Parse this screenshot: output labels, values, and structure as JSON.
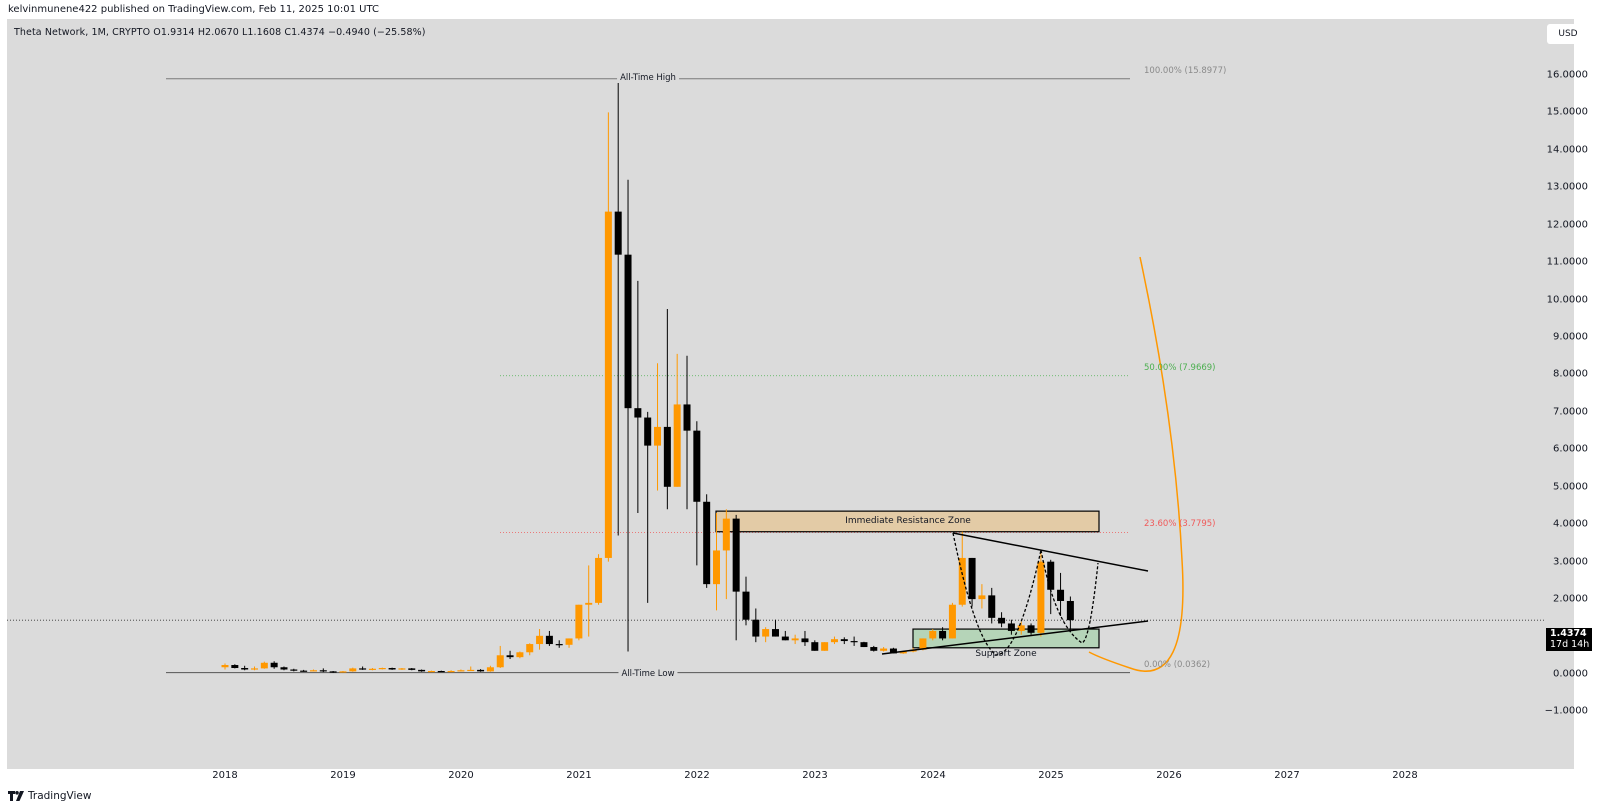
{
  "header": {
    "published": "kelvinmunene422 published on TradingView.com, Feb 11, 2025 10:01 UTC",
    "symbol_line": "Theta Network, 1M, CRYPTO  O1.9314  H2.0670  L1.1608  C1.4374  −0.4940 (−25.58%)",
    "currency_button": "USD"
  },
  "last_price": {
    "value": "1.4374",
    "countdown": "17d 14h"
  },
  "footer": {
    "brand": "TradingView",
    "logo_glyph": "17"
  },
  "annotations": {
    "ath_label": "All-Time High",
    "atl_label": "All-Time Low",
    "resistance_label": "Immediate Resistance Zone",
    "support_label": "Support Zone",
    "fib": [
      {
        "label": "100.00% (15.8977)",
        "price": 15.8977,
        "color": "#8a8a8a"
      },
      {
        "label": "50.00% (7.9669)",
        "price": 7.9669,
        "color": "#4caf50"
      },
      {
        "label": "23.60% (3.7795)",
        "price": 3.7795,
        "color": "#f05a5a"
      },
      {
        "label": "0.00% (0.0362)",
        "price": 0.0362,
        "color": "#8a8a8a"
      }
    ]
  },
  "colors": {
    "up": "#ff9800",
    "down": "#000000",
    "background": "#dbdbdb",
    "resistance_fill": "#e3cba6",
    "support_fill": "#b5d4b8",
    "curve": "#ff9800"
  },
  "chart_data": {
    "type": "candlestick",
    "title": "Theta Network, 1M, CRYPTO",
    "xlabel": "",
    "ylabel": "USD",
    "ylim": [
      -1.5,
      17
    ],
    "y_ticks": [
      "16.0000",
      "15.0000",
      "14.0000",
      "13.0000",
      "12.0000",
      "11.0000",
      "10.0000",
      "9.0000",
      "8.0000",
      "7.0000",
      "6.0000",
      "5.0000",
      "4.0000",
      "3.0000",
      "2.0000",
      "1.0000",
      "0.0000",
      "−1.0000"
    ],
    "x_ticks": [
      "2018",
      "2019",
      "2020",
      "2021",
      "2022",
      "2023",
      "2024",
      "2025",
      "2026",
      "2027",
      "2028"
    ],
    "ohlc_note": "monthly candles starting 2018-01 (approximate, read from chart)",
    "candles": [
      [
        0.18,
        0.28,
        0.12,
        0.24
      ],
      [
        0.24,
        0.26,
        0.15,
        0.16
      ],
      [
        0.16,
        0.22,
        0.1,
        0.12
      ],
      [
        0.12,
        0.2,
        0.1,
        0.15
      ],
      [
        0.15,
        0.33,
        0.14,
        0.3
      ],
      [
        0.3,
        0.34,
        0.14,
        0.18
      ],
      [
        0.18,
        0.2,
        0.1,
        0.12
      ],
      [
        0.12,
        0.14,
        0.07,
        0.09
      ],
      [
        0.09,
        0.11,
        0.06,
        0.08
      ],
      [
        0.08,
        0.12,
        0.07,
        0.1
      ],
      [
        0.1,
        0.15,
        0.05,
        0.07
      ],
      [
        0.07,
        0.08,
        0.03,
        0.05
      ],
      [
        0.05,
        0.08,
        0.04,
        0.07
      ],
      [
        0.07,
        0.17,
        0.06,
        0.15
      ],
      [
        0.15,
        0.2,
        0.11,
        0.13
      ],
      [
        0.13,
        0.16,
        0.1,
        0.14
      ],
      [
        0.14,
        0.17,
        0.12,
        0.16
      ],
      [
        0.16,
        0.17,
        0.11,
        0.12
      ],
      [
        0.12,
        0.16,
        0.11,
        0.15
      ],
      [
        0.15,
        0.16,
        0.1,
        0.11
      ],
      [
        0.11,
        0.12,
        0.06,
        0.07
      ],
      [
        0.07,
        0.09,
        0.06,
        0.08
      ],
      [
        0.08,
        0.09,
        0.06,
        0.07
      ],
      [
        0.07,
        0.1,
        0.05,
        0.08
      ],
      [
        0.08,
        0.12,
        0.07,
        0.1
      ],
      [
        0.1,
        0.2,
        0.08,
        0.11
      ],
      [
        0.11,
        0.13,
        0.06,
        0.07
      ],
      [
        0.07,
        0.22,
        0.06,
        0.18
      ],
      [
        0.18,
        0.75,
        0.16,
        0.5
      ],
      [
        0.5,
        0.62,
        0.4,
        0.45
      ],
      [
        0.45,
        0.6,
        0.42,
        0.58
      ],
      [
        0.58,
        0.82,
        0.5,
        0.8
      ],
      [
        0.8,
        1.2,
        0.65,
        1.02
      ],
      [
        1.02,
        1.15,
        0.75,
        0.8
      ],
      [
        0.8,
        0.9,
        0.7,
        0.78
      ],
      [
        0.78,
        0.95,
        0.7,
        0.95
      ],
      [
        0.95,
        1.85,
        0.9,
        1.85
      ],
      [
        1.85,
        2.9,
        1.0,
        1.9
      ],
      [
        1.9,
        3.2,
        1.85,
        3.1
      ],
      [
        3.1,
        15.0,
        3.0,
        12.35
      ],
      [
        12.35,
        15.9,
        3.7,
        11.2
      ],
      [
        11.2,
        13.2,
        0.6,
        7.1
      ],
      [
        7.1,
        10.5,
        4.3,
        6.85
      ],
      [
        6.85,
        7.0,
        1.9,
        6.1
      ],
      [
        6.1,
        8.3,
        4.9,
        6.6
      ],
      [
        6.6,
        9.75,
        4.4,
        5.0
      ],
      [
        5.0,
        8.55,
        5.0,
        7.2
      ],
      [
        7.2,
        8.5,
        4.4,
        6.5
      ],
      [
        6.5,
        6.75,
        2.9,
        4.6
      ],
      [
        4.6,
        4.8,
        2.3,
        2.4
      ],
      [
        2.4,
        4.3,
        1.7,
        3.3
      ],
      [
        3.3,
        4.4,
        2.0,
        4.15
      ],
      [
        4.15,
        4.25,
        0.9,
        2.2
      ],
      [
        2.2,
        2.6,
        1.3,
        1.45
      ],
      [
        1.45,
        1.75,
        0.85,
        1.0
      ],
      [
        1.0,
        1.25,
        0.85,
        1.2
      ],
      [
        1.2,
        1.45,
        1.0,
        1.0
      ],
      [
        1.0,
        1.15,
        0.9,
        0.9
      ],
      [
        0.9,
        1.05,
        0.8,
        0.95
      ],
      [
        0.95,
        1.15,
        0.75,
        0.85
      ],
      [
        0.85,
        0.9,
        0.62,
        0.62
      ],
      [
        0.62,
        0.85,
        0.62,
        0.85
      ],
      [
        0.85,
        1.0,
        0.8,
        0.93
      ],
      [
        0.93,
        0.98,
        0.8,
        0.88
      ],
      [
        0.88,
        1.0,
        0.75,
        0.85
      ],
      [
        0.85,
        0.86,
        0.72,
        0.72
      ],
      [
        0.72,
        0.75,
        0.6,
        0.62
      ],
      [
        0.62,
        0.72,
        0.6,
        0.68
      ],
      [
        0.68,
        0.7,
        0.55,
        0.55
      ],
      [
        0.55,
        0.62,
        0.54,
        0.6
      ],
      [
        0.6,
        0.7,
        0.58,
        0.65
      ],
      [
        0.65,
        0.95,
        0.63,
        0.95
      ],
      [
        0.95,
        1.2,
        0.9,
        1.15
      ],
      [
        1.15,
        1.25,
        0.9,
        0.95
      ],
      [
        0.95,
        1.9,
        0.95,
        1.85
      ],
      [
        1.85,
        3.8,
        1.8,
        3.1
      ],
      [
        3.1,
        3.1,
        1.8,
        2.0
      ],
      [
        2.0,
        2.4,
        1.75,
        2.1
      ],
      [
        2.1,
        2.3,
        1.35,
        1.5
      ],
      [
        1.5,
        1.65,
        1.25,
        1.35
      ],
      [
        1.35,
        1.45,
        1.05,
        1.15
      ],
      [
        1.15,
        1.4,
        1.05,
        1.3
      ],
      [
        1.3,
        1.35,
        1.05,
        1.1
      ],
      [
        1.1,
        3.25,
        1.0,
        3.0
      ],
      [
        3.0,
        3.05,
        1.6,
        2.25
      ],
      [
        2.25,
        2.7,
        1.55,
        1.95
      ],
      [
        1.95,
        2.07,
        1.16,
        1.4374
      ]
    ],
    "series": [
      {
        "name": "Fib 100.00%",
        "value": 15.8977
      },
      {
        "name": "Fib 50.00%",
        "value": 7.9669
      },
      {
        "name": "Fib 23.60%",
        "value": 3.7795
      },
      {
        "name": "Fib 0.00%",
        "value": 0.0362
      }
    ],
    "zones": [
      {
        "name": "Immediate Resistance Zone",
        "low": 3.8,
        "high": 4.35
      },
      {
        "name": "Support Zone",
        "low": 0.7,
        "high": 1.2
      }
    ],
    "last_close": 1.4374,
    "grid": false,
    "legend_position": "none"
  }
}
